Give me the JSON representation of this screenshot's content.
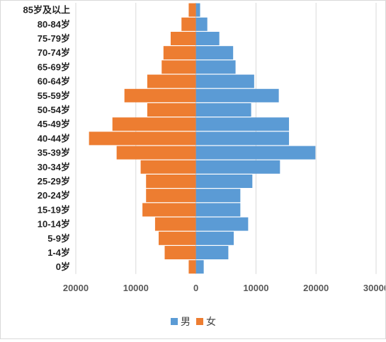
{
  "chart_data": {
    "type": "bar",
    "orientation": "horizontal",
    "categories": [
      "0岁",
      "1-4岁",
      "5-9岁",
      "10-14岁",
      "15-19岁",
      "20-24岁",
      "25-29岁",
      "30-34岁",
      "35-39岁",
      "40-44岁",
      "45-49岁",
      "50-54岁",
      "55-59岁",
      "60-64岁",
      "65-69岁",
      "70-74岁",
      "75-79岁",
      "80-84岁",
      "85岁及以上"
    ],
    "series": [
      {
        "name": "男",
        "color": "#5b9bd5",
        "direction": "right",
        "values": [
          1300,
          5400,
          6300,
          8700,
          7400,
          7400,
          9400,
          14000,
          19900,
          15500,
          15500,
          9200,
          13800,
          9700,
          6600,
          6200,
          3900,
          1900,
          700
        ]
      },
      {
        "name": "女",
        "color": "#ed7d31",
        "direction": "left",
        "values": [
          1200,
          5200,
          6200,
          6800,
          8900,
          8300,
          8300,
          9200,
          13200,
          17800,
          13900,
          8100,
          11900,
          8100,
          5700,
          5400,
          4200,
          2400,
          1200
        ]
      }
    ],
    "x_ticks": [
      "20000",
      "10000",
      "0",
      "10000",
      "20000",
      "30000"
    ],
    "x_tick_values": [
      -20000,
      -10000,
      0,
      10000,
      20000,
      30000
    ],
    "xlim": [
      -20000,
      30000
    ],
    "grid": "vertical",
    "legend_position": "bottom"
  }
}
